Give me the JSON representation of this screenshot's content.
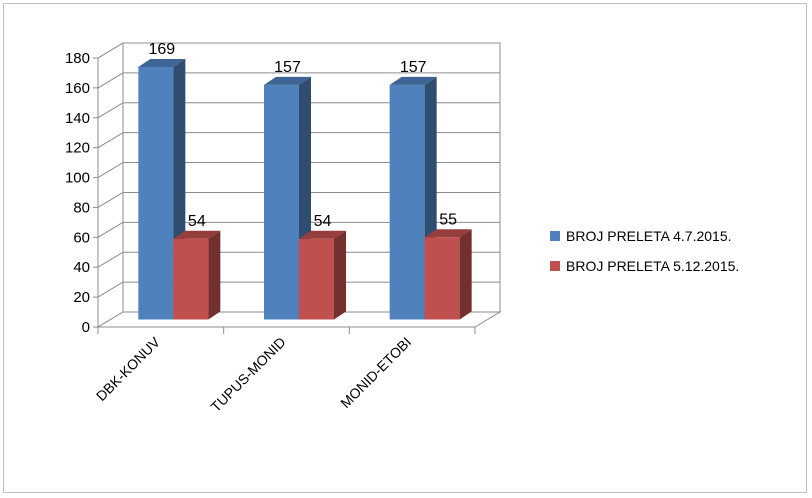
{
  "chart_data": {
    "type": "bar",
    "categories": [
      "DBK-KONUV",
      "TUPUS-MONID",
      "MONID-ETOBI"
    ],
    "series": [
      {
        "name": "BROJ PRELETA 4.7.2015.",
        "values": [
          169,
          157,
          157
        ],
        "color": "#4f81bd"
      },
      {
        "name": "BROJ PRELETA 5.12.2015.",
        "values": [
          54,
          54,
          55
        ],
        "color": "#c0504d"
      }
    ],
    "title": "",
    "xlabel": "",
    "ylabel": "",
    "ylim": [
      0,
      180
    ],
    "yticks": [
      "0",
      "20",
      "40",
      "60",
      "80",
      "100",
      "120",
      "140",
      "160",
      "180"
    ],
    "grid": true,
    "legend_position": "right",
    "style": "3d-clustered-column"
  }
}
